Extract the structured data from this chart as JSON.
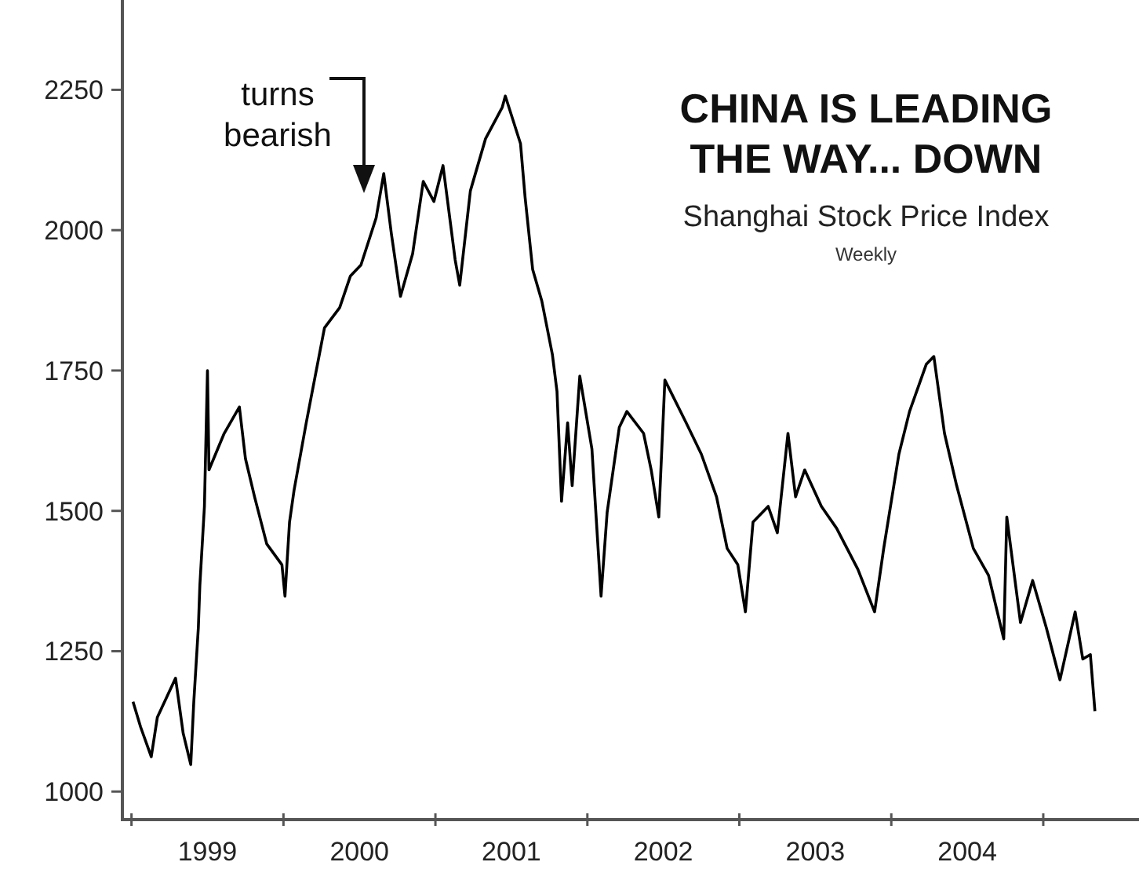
{
  "chart_data": {
    "type": "line",
    "title": "CHINA IS LEADING THE WAY... DOWN",
    "subtitle": "Shanghai Stock Price Index",
    "annotations": [
      "Weekly",
      "turns bearish"
    ],
    "xlim": [
      1998.94,
      2005.63
    ],
    "ylim": [
      950,
      2410
    ],
    "xticks": [
      {
        "value": 1999,
        "label": null
      },
      {
        "value": 1999.5,
        "label": "1999"
      },
      {
        "value": 2000,
        "label": null
      },
      {
        "value": 2000.5,
        "label": "2000"
      },
      {
        "value": 2001,
        "label": null
      },
      {
        "value": 2001.5,
        "label": "2001"
      },
      {
        "value": 2002,
        "label": null
      },
      {
        "value": 2002.5,
        "label": "2002"
      },
      {
        "value": 2003,
        "label": null
      },
      {
        "value": 2003.5,
        "label": "2003"
      },
      {
        "value": 2004,
        "label": null
      },
      {
        "value": 2004.5,
        "label": "2004"
      },
      {
        "value": 2005,
        "label": null
      }
    ],
    "yticks": [
      1000,
      1250,
      1500,
      1750,
      2000,
      2250
    ],
    "grid": false,
    "marker": "none",
    "line_style": "solid",
    "series": [
      {
        "color": "#000000",
        "x": [
          1999.01,
          1999.06,
          1999.13,
          1999.17,
          1999.29,
          1999.34,
          1999.39,
          1999.41,
          1999.44,
          1999.45,
          1999.48,
          1999.5,
          1999.51,
          1999.61,
          1999.71,
          1999.75,
          1999.81,
          1999.89,
          1999.99,
          2000.01,
          2000.04,
          2000.07,
          2000.15,
          2000.27,
          2000.37,
          2000.44,
          2000.51,
          2000.61,
          2000.66,
          2000.71,
          2000.77,
          2000.85,
          2000.92,
          2000.99,
          2001.05,
          2001.13,
          2001.16,
          2001.23,
          2001.33,
          2001.44,
          2001.46,
          2001.56,
          2001.59,
          2001.64,
          2001.7,
          2001.77,
          2001.8,
          2001.83,
          2001.87,
          2001.9,
          2001.95,
          2002.03,
          2002.09,
          2002.13,
          2002.21,
          2002.26,
          2002.37,
          2002.42,
          2002.47,
          2002.51,
          2002.65,
          2002.75,
          2002.85,
          2002.92,
          2002.99,
          2003.04,
          2003.09,
          2003.19,
          2003.25,
          2003.32,
          2003.37,
          2003.43,
          2003.54,
          2003.64,
          2003.78,
          2003.89,
          2003.95,
          2004.05,
          2004.12,
          2004.23,
          2004.28,
          2004.35,
          2004.43,
          2004.54,
          2004.64,
          2004.74,
          2004.76,
          2004.85,
          2004.93,
          2005.02,
          2005.11,
          2005.21,
          2005.26,
          2005.31,
          2005.34
        ],
        "values": [
          1160,
          1115,
          1062,
          1132,
          1202,
          1104,
          1048,
          1160,
          1292,
          1368,
          1508,
          1750,
          1573,
          1638,
          1685,
          1593,
          1525,
          1441,
          1404,
          1348,
          1480,
          1537,
          1657,
          1826,
          1862,
          1918,
          1938,
          2022,
          2101,
          1994,
          1882,
          1958,
          2087,
          2051,
          2115,
          1947,
          1902,
          2070,
          2163,
          2219,
          2239,
          2154,
          2059,
          1930,
          1874,
          1778,
          1713,
          1517,
          1657,
          1545,
          1740,
          1610,
          1348,
          1497,
          1649,
          1677,
          1638,
          1573,
          1489,
          1733,
          1657,
          1601,
          1525,
          1433,
          1404,
          1320,
          1480,
          1508,
          1461,
          1638,
          1525,
          1573,
          1508,
          1469,
          1396,
          1320,
          1433,
          1601,
          1677,
          1761,
          1775,
          1638,
          1545,
          1433,
          1385,
          1272,
          1489,
          1301,
          1376,
          1292,
          1199,
          1320,
          1236,
          1244,
          1143
        ]
      }
    ]
  }
}
